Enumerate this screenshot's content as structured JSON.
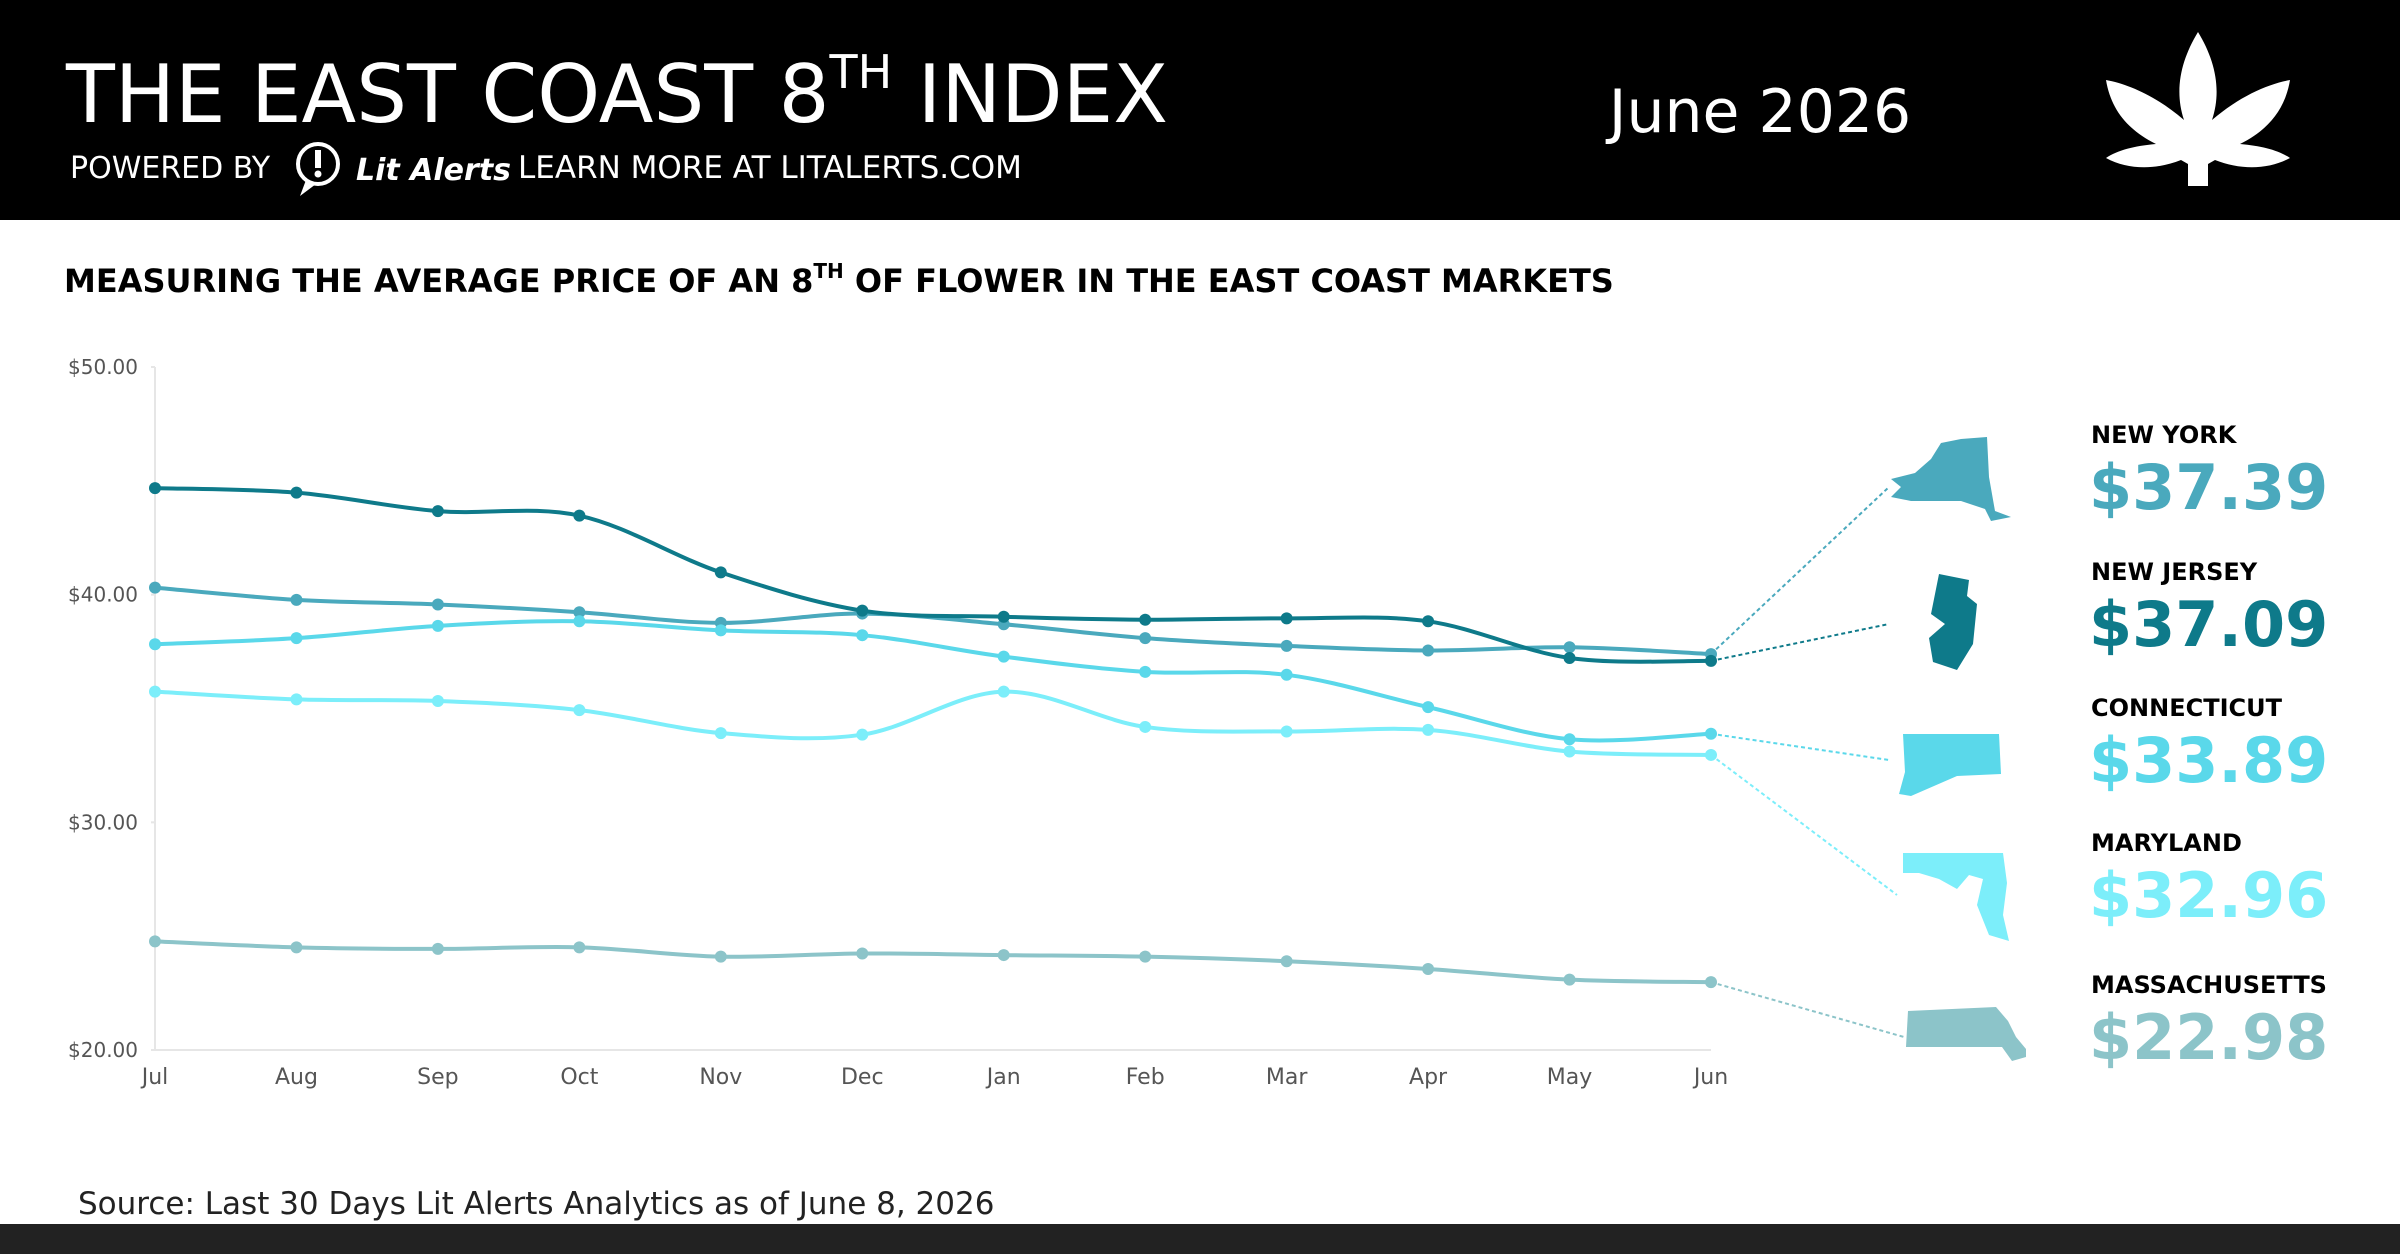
{
  "header": {
    "title": "THE EAST COAST 8",
    "title_sup": "TH",
    "title_end": " INDEX",
    "powered_by": "POWERED BY",
    "brand": "Lit Alerts",
    "learn_more": "LEARN MORE AT LITALERTS.COM",
    "date": "June 2026"
  },
  "chart_data": {
    "type": "line",
    "title": "MEASURING THE AVERAGE PRICE OF AN 8",
    "title_sup": "TH",
    "title_end": " OF FLOWER IN THE EAST COAST MARKETS",
    "categories": [
      "Jul",
      "Aug",
      "Sep",
      "Oct",
      "Nov",
      "Dec",
      "Jan",
      "Feb",
      "Mar",
      "Apr",
      "May",
      "Jun"
    ],
    "ylim": [
      20,
      50
    ],
    "yticks": [
      {
        "value": 20,
        "label": "$20.00"
      },
      {
        "value": 30,
        "label": "$30.00"
      },
      {
        "value": 40,
        "label": "$40.00"
      },
      {
        "value": 50,
        "label": "$50.00"
      }
    ],
    "grid": false,
    "series": [
      {
        "name": "NEW YORK",
        "color": "#4aa9bd",
        "values": [
          40.31,
          39.77,
          39.57,
          39.23,
          38.76,
          39.17,
          38.7,
          38.09,
          37.75,
          37.55,
          37.69,
          37.39
        ],
        "value_labels": [
          null,
          null,
          null,
          null,
          null,
          null,
          null,
          null,
          null,
          null,
          null,
          "$37.39"
        ]
      },
      {
        "name": "NEW JERSEY",
        "color": "#0e7a8a",
        "values": [
          44.68,
          44.48,
          43.67,
          43.47,
          40.98,
          39.3,
          39.03,
          38.9,
          38.96,
          38.83,
          37.22,
          37.09
        ],
        "value_labels": [
          null,
          null,
          null,
          null,
          null,
          null,
          null,
          null,
          null,
          null,
          null,
          "$37.09"
        ]
      },
      {
        "name": "CONNECTICUT",
        "color": "#5ad8ea",
        "values": [
          37.82,
          38.09,
          38.63,
          38.83,
          38.43,
          38.22,
          37.28,
          36.61,
          36.48,
          35.06,
          33.65,
          33.89
        ],
        "value_labels": [
          null,
          null,
          null,
          null,
          null,
          null,
          null,
          null,
          null,
          null,
          null,
          "$33.89"
        ]
      },
      {
        "name": "MARYLAND",
        "color": "#7ceefa",
        "values": [
          35.74,
          35.4,
          35.33,
          34.93,
          33.92,
          33.85,
          35.74,
          34.19,
          33.99,
          34.06,
          33.11,
          32.96
        ],
        "value_labels": [
          null,
          null,
          null,
          null,
          null,
          null,
          null,
          null,
          null,
          null,
          null,
          "$32.96"
        ]
      },
      {
        "name": "MASSACHUSETTS",
        "color": "#8cc4c9",
        "values": [
          24.77,
          24.51,
          24.44,
          24.51,
          24.1,
          24.24,
          24.17,
          24.1,
          23.9,
          23.56,
          23.09,
          22.98
        ],
        "value_labels": [
          null,
          null,
          null,
          null,
          null,
          null,
          null,
          null,
          null,
          null,
          null,
          "$22.98"
        ]
      }
    ],
    "source": "Source: Last 30 Days Lit Alerts Analytics as of June 8, 2026"
  }
}
